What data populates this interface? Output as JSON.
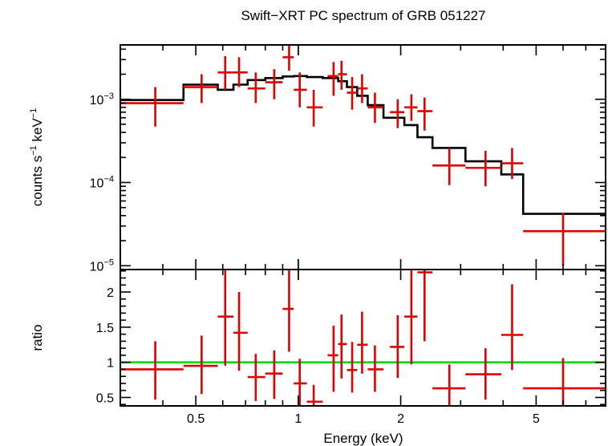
{
  "chart_data": {
    "title": "Swift−XRT PC spectrum of GRB 051227",
    "xlabel": "Energy (keV)",
    "x_scale": "log",
    "xlim": [
      0.3,
      8.0
    ],
    "x_ticks": [
      {
        "v": 0.5,
        "label": "0.5"
      },
      {
        "v": 1,
        "label": "1"
      },
      {
        "v": 2,
        "label": "2"
      },
      {
        "v": 5,
        "label": "5"
      }
    ],
    "panels": [
      {
        "type": "scatter",
        "ylabel": {
          "base": "counts s",
          "sup1": "−1",
          "mid": " keV",
          "sup2": "−1"
        },
        "y_scale": "log",
        "ylim": [
          9e-06,
          0.0045
        ],
        "y_ticks": [
          {
            "v": 0.001,
            "base": "10",
            "exp": "−3"
          },
          {
            "v": 0.0001,
            "base": "10",
            "exp": "−4"
          },
          {
            "v": 1e-05,
            "base": "10",
            "exp": "−5"
          }
        ],
        "series": [
          {
            "kind": "data_points",
            "color": "#e00000",
            "points": [
              {
                "x": 0.38,
                "xlo": 0.3,
                "xhi": 0.46,
                "y": 0.0009,
                "ylo": 0.00047,
                "yhi": 0.0014
              },
              {
                "x": 0.52,
                "xlo": 0.46,
                "xhi": 0.58,
                "y": 0.0014,
                "ylo": 0.0009,
                "yhi": 0.002
              },
              {
                "x": 0.61,
                "xlo": 0.58,
                "xhi": 0.645,
                "y": 0.0021,
                "ylo": 0.0013,
                "yhi": 0.0033
              },
              {
                "x": 0.67,
                "xlo": 0.645,
                "xhi": 0.71,
                "y": 0.0021,
                "ylo": 0.0014,
                "yhi": 0.0032
              },
              {
                "x": 0.75,
                "xlo": 0.71,
                "xhi": 0.8,
                "y": 0.00135,
                "ylo": 0.0009,
                "yhi": 0.0021
              },
              {
                "x": 0.85,
                "xlo": 0.8,
                "xhi": 0.9,
                "y": 0.0016,
                "ylo": 0.001,
                "yhi": 0.0023
              },
              {
                "x": 0.94,
                "xlo": 0.9,
                "xhi": 0.97,
                "y": 0.0032,
                "ylo": 0.0022,
                "yhi": 0.0045
              },
              {
                "x": 1.01,
                "xlo": 0.97,
                "xhi": 1.06,
                "y": 0.0013,
                "ylo": 0.0008,
                "yhi": 0.0021
              },
              {
                "x": 1.11,
                "xlo": 1.06,
                "xhi": 1.18,
                "y": 0.0008,
                "ylo": 0.00047,
                "yhi": 0.0013
              },
              {
                "x": 1.27,
                "xlo": 1.22,
                "xhi": 1.31,
                "y": 0.0019,
                "ylo": 0.0011,
                "yhi": 0.0028
              },
              {
                "x": 1.34,
                "xlo": 1.31,
                "xhi": 1.39,
                "y": 0.002,
                "ylo": 0.0013,
                "yhi": 0.0029
              },
              {
                "x": 1.44,
                "xlo": 1.39,
                "xhi": 1.49,
                "y": 0.0012,
                "ylo": 0.00075,
                "yhi": 0.00185
              },
              {
                "x": 1.54,
                "xlo": 1.49,
                "xhi": 1.6,
                "y": 0.00135,
                "ylo": 0.0009,
                "yhi": 0.002
              },
              {
                "x": 1.68,
                "xlo": 1.6,
                "xhi": 1.78,
                "y": 0.0008,
                "ylo": 0.00052,
                "yhi": 0.0012
              },
              {
                "x": 1.96,
                "xlo": 1.86,
                "xhi": 2.05,
                "y": 0.0007,
                "ylo": 0.00045,
                "yhi": 0.001
              },
              {
                "x": 2.15,
                "xlo": 2.05,
                "xhi": 2.24,
                "y": 0.0008,
                "ylo": 0.00055,
                "yhi": 0.00115
              },
              {
                "x": 2.35,
                "xlo": 2.24,
                "xhi": 2.48,
                "y": 0.00072,
                "ylo": 0.00042,
                "yhi": 0.00105
              },
              {
                "x": 2.78,
                "xlo": 2.48,
                "xhi": 3.1,
                "y": 0.00016,
                "ylo": 9.3e-05,
                "yhi": 0.00026
              },
              {
                "x": 3.55,
                "xlo": 3.1,
                "xhi": 3.95,
                "y": 0.00015,
                "ylo": 9e-05,
                "yhi": 0.00024
              },
              {
                "x": 4.25,
                "xlo": 3.95,
                "xhi": 4.58,
                "y": 0.00017,
                "ylo": 0.00011,
                "yhi": 0.00026
              },
              {
                "x": 6.0,
                "xlo": 4.58,
                "xhi": 8.0,
                "y": 2.6e-05,
                "ylo": 1e-05,
                "yhi": 4.3e-05
              }
            ]
          },
          {
            "kind": "model_step",
            "color": "#000000",
            "bins": [
              {
                "xlo": 0.3,
                "xhi": 0.46,
                "y": 0.00098
              },
              {
                "xlo": 0.46,
                "xhi": 0.58,
                "y": 0.0015
              },
              {
                "xlo": 0.58,
                "xhi": 0.645,
                "y": 0.0013
              },
              {
                "xlo": 0.645,
                "xhi": 0.71,
                "y": 0.0015
              },
              {
                "xlo": 0.71,
                "xhi": 0.8,
                "y": 0.0017
              },
              {
                "xlo": 0.8,
                "xhi": 0.9,
                "y": 0.0018
              },
              {
                "xlo": 0.9,
                "xhi": 0.97,
                "y": 0.00188
              },
              {
                "xlo": 0.97,
                "xhi": 1.06,
                "y": 0.0019
              },
              {
                "xlo": 1.06,
                "xhi": 1.18,
                "y": 0.00185
              },
              {
                "xlo": 1.18,
                "xhi": 1.31,
                "y": 0.0018
              },
              {
                "xlo": 1.31,
                "xhi": 1.39,
                "y": 0.00165
              },
              {
                "xlo": 1.39,
                "xhi": 1.49,
                "y": 0.0014
              },
              {
                "xlo": 1.49,
                "xhi": 1.6,
                "y": 0.0011
              },
              {
                "xlo": 1.6,
                "xhi": 1.78,
                "y": 0.00085
              },
              {
                "xlo": 1.78,
                "xhi": 2.05,
                "y": 0.0006
              },
              {
                "xlo": 2.05,
                "xhi": 2.24,
                "y": 0.00049
              },
              {
                "xlo": 2.24,
                "xhi": 2.48,
                "y": 0.00035
              },
              {
                "xlo": 2.48,
                "xhi": 3.1,
                "y": 0.00026
              },
              {
                "xlo": 3.1,
                "xhi": 3.95,
                "y": 0.00018
              },
              {
                "xlo": 3.95,
                "xhi": 4.58,
                "y": 0.000125
              },
              {
                "xlo": 4.58,
                "xhi": 8.0,
                "y": 4.2e-05
              }
            ]
          }
        ]
      },
      {
        "type": "scatter",
        "ylabel": "ratio",
        "y_scale": "linear",
        "ylim": [
          0.38,
          2.32
        ],
        "y_ticks": [
          {
            "v": 0.5,
            "label": "0.5"
          },
          {
            "v": 1,
            "label": "1"
          },
          {
            "v": 1.5,
            "label": "1.5"
          },
          {
            "v": 2,
            "label": "2"
          }
        ],
        "reference_line": {
          "y": 1,
          "color": "#00dd00"
        },
        "series": [
          {
            "kind": "data_points",
            "color": "#e00000",
            "points": [
              {
                "x": 0.38,
                "xlo": 0.3,
                "xhi": 0.46,
                "y": 0.9,
                "ylo": 0.47,
                "yhi": 1.3
              },
              {
                "x": 0.52,
                "xlo": 0.46,
                "xhi": 0.58,
                "y": 0.95,
                "ylo": 0.55,
                "yhi": 1.38
              },
              {
                "x": 0.61,
                "xlo": 0.58,
                "xhi": 0.645,
                "y": 1.65,
                "ylo": 0.95,
                "yhi": 2.38
              },
              {
                "x": 0.67,
                "xlo": 0.645,
                "xhi": 0.71,
                "y": 1.42,
                "ylo": 0.88,
                "yhi": 2.0
              },
              {
                "x": 0.75,
                "xlo": 0.71,
                "xhi": 0.8,
                "y": 0.79,
                "ylo": 0.45,
                "yhi": 1.12
              },
              {
                "x": 0.85,
                "xlo": 0.8,
                "xhi": 0.9,
                "y": 0.84,
                "ylo": 0.48,
                "yhi": 1.17
              },
              {
                "x": 0.94,
                "xlo": 0.9,
                "xhi": 0.97,
                "y": 1.76,
                "ylo": 1.15,
                "yhi": 2.38
              },
              {
                "x": 1.01,
                "xlo": 0.97,
                "xhi": 1.06,
                "y": 0.7,
                "ylo": 0.38,
                "yhi": 1.05
              },
              {
                "x": 1.11,
                "xlo": 1.06,
                "xhi": 1.18,
                "y": 0.44,
                "ylo": 0.38,
                "yhi": 0.68
              },
              {
                "x": 1.27,
                "xlo": 1.22,
                "xhi": 1.31,
                "y": 1.1,
                "ylo": 0.58,
                "yhi": 1.52
              },
              {
                "x": 1.34,
                "xlo": 1.31,
                "xhi": 1.39,
                "y": 1.26,
                "ylo": 0.77,
                "yhi": 1.68
              },
              {
                "x": 1.44,
                "xlo": 1.39,
                "xhi": 1.49,
                "y": 0.89,
                "ylo": 0.57,
                "yhi": 1.29
              },
              {
                "x": 1.54,
                "xlo": 1.49,
                "xhi": 1.6,
                "y": 1.25,
                "ylo": 0.84,
                "yhi": 1.72
              },
              {
                "x": 1.68,
                "xlo": 1.6,
                "xhi": 1.78,
                "y": 0.9,
                "ylo": 0.58,
                "yhi": 1.24
              },
              {
                "x": 1.96,
                "xlo": 1.86,
                "xhi": 2.05,
                "y": 1.22,
                "ylo": 0.78,
                "yhi": 1.67
              },
              {
                "x": 2.15,
                "xlo": 2.05,
                "xhi": 2.24,
                "y": 1.65,
                "ylo": 0.97,
                "yhi": 2.38
              },
              {
                "x": 2.35,
                "xlo": 2.24,
                "xhi": 2.48,
                "y": 2.28,
                "ylo": 1.3,
                "yhi": 2.38
              },
              {
                "x": 2.78,
                "xlo": 2.48,
                "xhi": 3.1,
                "y": 0.63,
                "ylo": 0.38,
                "yhi": 0.97
              },
              {
                "x": 3.55,
                "xlo": 3.1,
                "xhi": 3.95,
                "y": 0.83,
                "ylo": 0.47,
                "yhi": 1.2
              },
              {
                "x": 4.25,
                "xlo": 3.95,
                "xhi": 4.58,
                "y": 1.39,
                "ylo": 0.89,
                "yhi": 2.11
              },
              {
                "x": 6.0,
                "xlo": 4.58,
                "xhi": 8.0,
                "y": 0.63,
                "ylo": 0.38,
                "yhi": 1.06
              }
            ]
          }
        ]
      }
    ]
  }
}
